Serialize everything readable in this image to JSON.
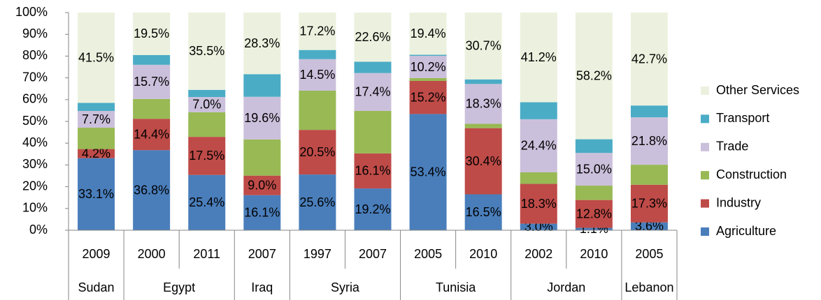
{
  "chart_data": {
    "type": "stacked_bar",
    "groups": [
      {
        "name": "Sudan",
        "categories": [
          "2009"
        ]
      },
      {
        "name": "Egypt",
        "categories": [
          "2000",
          "2011"
        ]
      },
      {
        "name": "Iraq",
        "categories": [
          "2007"
        ]
      },
      {
        "name": "Syria",
        "categories": [
          "1997",
          "2007"
        ]
      },
      {
        "name": "Tunisia",
        "categories": [
          "2005",
          "2010"
        ]
      },
      {
        "name": "Jordan",
        "categories": [
          "2002",
          "2010"
        ]
      },
      {
        "name": "Lebanon",
        "categories": [
          "2005"
        ]
      }
    ],
    "series": [
      {
        "name": "Agriculture",
        "color": "#4a7ebb",
        "values": [
          33.1,
          36.8,
          25.4,
          16.1,
          25.6,
          19.2,
          53.4,
          16.5,
          3.0,
          1.1,
          3.6
        ],
        "value_labels": [
          "33.1%",
          "36.8%",
          "25.4%",
          "16.1%",
          "25.6%",
          "19.2%",
          "53.4%",
          "16.5%",
          "3.0%",
          "1.1%",
          "3.6%"
        ]
      },
      {
        "name": "Industry",
        "color": "#be4b48",
        "values": [
          4.2,
          14.4,
          17.5,
          9.0,
          20.5,
          16.1,
          15.2,
          30.4,
          18.3,
          12.8,
          17.3
        ],
        "value_labels": [
          "4.2%",
          "14.4%",
          "17.5%",
          "9.0%",
          "20.5%",
          "16.1%",
          "15.2%",
          "30.4%",
          "18.3%",
          "12.8%",
          "17.3%"
        ]
      },
      {
        "name": "Construction",
        "color": "#98b954",
        "values": [
          9.8,
          9.1,
          11.3,
          16.6,
          18.0,
          19.5,
          1.3,
          2.0,
          5.3,
          6.6,
          9.2
        ]
      },
      {
        "name": "Trade",
        "color": "#cbc0db",
        "values": [
          7.7,
          15.7,
          7.0,
          19.6,
          14.5,
          17.4,
          10.2,
          18.3,
          24.4,
          15.0,
          21.8
        ],
        "value_labels": [
          "7.7%",
          "15.7%",
          "7.0%",
          "19.6%",
          "14.5%",
          "17.4%",
          "10.2%",
          "18.3%",
          "24.4%",
          "15.0%",
          "21.8%"
        ]
      },
      {
        "name": "Transport",
        "color": "#4bacc6",
        "values": [
          3.7,
          4.5,
          3.3,
          10.4,
          4.2,
          5.2,
          0.5,
          2.1,
          7.8,
          6.3,
          5.4
        ]
      },
      {
        "name": "Other Services",
        "color": "#ebf1de",
        "values": [
          41.5,
          19.5,
          35.5,
          28.3,
          17.2,
          22.6,
          19.4,
          30.7,
          41.2,
          58.2,
          42.7
        ],
        "value_labels": [
          "41.5%",
          "19.5%",
          "35.5%",
          "28.3%",
          "17.2%",
          "22.6%",
          "19.4%",
          "30.7%",
          "41.2%",
          "58.2%",
          "42.7%"
        ]
      }
    ],
    "ylim": [
      0,
      100
    ],
    "yticks": [
      {
        "value": 0,
        "label": "0%"
      },
      {
        "value": 10,
        "label": "10%"
      },
      {
        "value": 20,
        "label": "20%"
      },
      {
        "value": 30,
        "label": "30%"
      },
      {
        "value": 40,
        "label": "40%"
      },
      {
        "value": 50,
        "label": "50%"
      },
      {
        "value": 60,
        "label": "60%"
      },
      {
        "value": 70,
        "label": "70%"
      },
      {
        "value": 80,
        "label": "80%"
      },
      {
        "value": 90,
        "label": "90%"
      },
      {
        "value": 100,
        "label": "100%"
      }
    ],
    "legend": "right"
  }
}
